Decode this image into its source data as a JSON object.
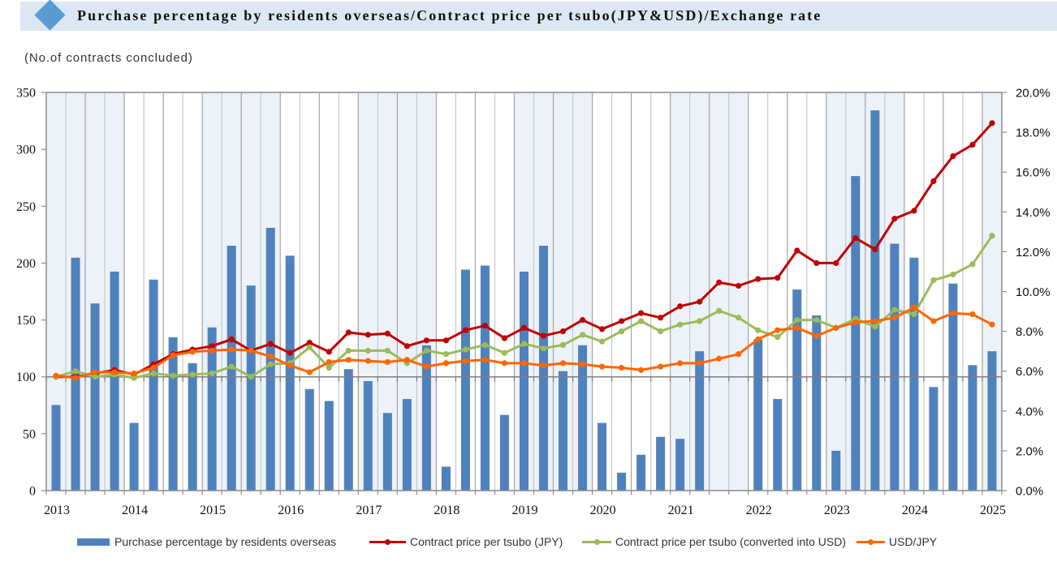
{
  "header": {
    "title": "Purchase percentage by residents overseas/Contract price per tsubo(JPY&USD)/Exchange rate",
    "icon": "diamond-icon",
    "accent_color": "#5B9BD5",
    "background_color": "#DCE7F3"
  },
  "chart_data": {
    "type": "bar",
    "title": "Purchase percentage by residents overseas/Contract price per tsubo(JPY&USD)/Exchange rate",
    "ylabel": "(No.of contracts concluded)",
    "xlabel": "",
    "ylim": [
      0,
      350
    ],
    "yticks": [
      0,
      50,
      100,
      150,
      200,
      250,
      300,
      350
    ],
    "y_tick_labels": [
      "0",
      "50",
      "100",
      "150",
      "200",
      "250",
      "300",
      "350"
    ],
    "y2lim": [
      0,
      20
    ],
    "y2ticks": [
      0,
      2,
      4,
      6,
      8,
      10,
      12,
      14,
      16,
      18,
      20
    ],
    "y2_tick_labels": [
      "0.0%",
      "2.0%",
      "4.0%",
      "6.0%",
      "8.0%",
      "10.0%",
      "12.0%",
      "14.0%",
      "16.0%",
      "18.0%",
      "20.0%"
    ],
    "reference_line_value": 100,
    "grid": "vertical",
    "alternating_year_shading": true,
    "legend_position": "bottom",
    "categories": [
      "2013",
      "",
      "",
      "",
      "2014",
      "",
      "",
      "",
      "2015",
      "",
      "",
      "",
      "2016",
      "",
      "",
      "",
      "2017",
      "",
      "",
      "",
      "2018",
      "",
      "",
      "",
      "2019",
      "",
      "",
      "",
      "2020",
      "",
      "",
      "",
      "2021",
      "",
      "",
      "",
      "2022",
      "",
      "",
      "",
      "2023",
      "",
      "",
      "",
      "2024",
      "",
      "",
      "",
      "2025"
    ],
    "series": [
      {
        "name": "Purchase percentage by residents overseas",
        "type": "bar",
        "axis": "right",
        "unit": "%",
        "color": "#4F81BD",
        "values": [
          4.3,
          11.7,
          9.4,
          11.0,
          3.4,
          10.6,
          7.7,
          6.4,
          8.2,
          12.3,
          10.3,
          13.2,
          11.8,
          5.1,
          4.5,
          6.1,
          5.5,
          3.9,
          4.6,
          7.3,
          1.2,
          11.1,
          11.3,
          3.8,
          11.0,
          12.3,
          6.0,
          7.3,
          3.4,
          0.9,
          1.8,
          2.7,
          2.6,
          7.0,
          null,
          null,
          7.6,
          4.6,
          10.1,
          8.8,
          2.0,
          15.8,
          19.1,
          12.4,
          11.7,
          5.2,
          10.4,
          6.3,
          7.0
        ]
      },
      {
        "name": "Contract price per tsubo (JPY)",
        "type": "line",
        "axis": "left",
        "color": "#C00000",
        "values": [
          100,
          100,
          103,
          106,
          102,
          111,
          120,
          124,
          127,
          133,
          123,
          129,
          121,
          130,
          122,
          139,
          137,
          138,
          127,
          132,
          132,
          141,
          145,
          134,
          143,
          136,
          140,
          150,
          142,
          149,
          156,
          152,
          162,
          166,
          183,
          180,
          186,
          187,
          211,
          200,
          200,
          222,
          212,
          239,
          246,
          272,
          294,
          304,
          323
        ]
      },
      {
        "name": "Contract price per tsubo (converted into USD)",
        "type": "line",
        "axis": "left",
        "color": "#9BBB59",
        "values": [
          100,
          105,
          100,
          102,
          99,
          103,
          101,
          102,
          103,
          109,
          100,
          111,
          112,
          126,
          108,
          123,
          123,
          123,
          112,
          123,
          120,
          124,
          128,
          121,
          129,
          125,
          128,
          137,
          131,
          140,
          149,
          140,
          146,
          149,
          158,
          152,
          141,
          135,
          150,
          150,
          143,
          151,
          144,
          159,
          155,
          185,
          190,
          199,
          224
        ]
      },
      {
        "name": "USD/JPY",
        "type": "line",
        "axis": "left",
        "color": "#FF6600",
        "values": [
          101,
          99,
          104,
          104,
          103,
          108,
          119,
          122,
          123,
          124,
          123,
          118,
          110,
          104,
          113,
          115,
          114,
          113,
          115,
          109,
          112,
          114,
          115,
          112,
          112,
          110,
          112,
          111,
          109,
          108,
          106,
          109,
          112,
          112,
          116,
          120,
          133,
          141,
          143,
          136,
          143,
          148,
          149,
          152,
          161,
          149,
          156,
          155,
          146
        ]
      }
    ]
  },
  "colors": {
    "shading": "#EDF2F9",
    "gridline": "#B3B3B3",
    "axis": "#8C8C8C"
  }
}
